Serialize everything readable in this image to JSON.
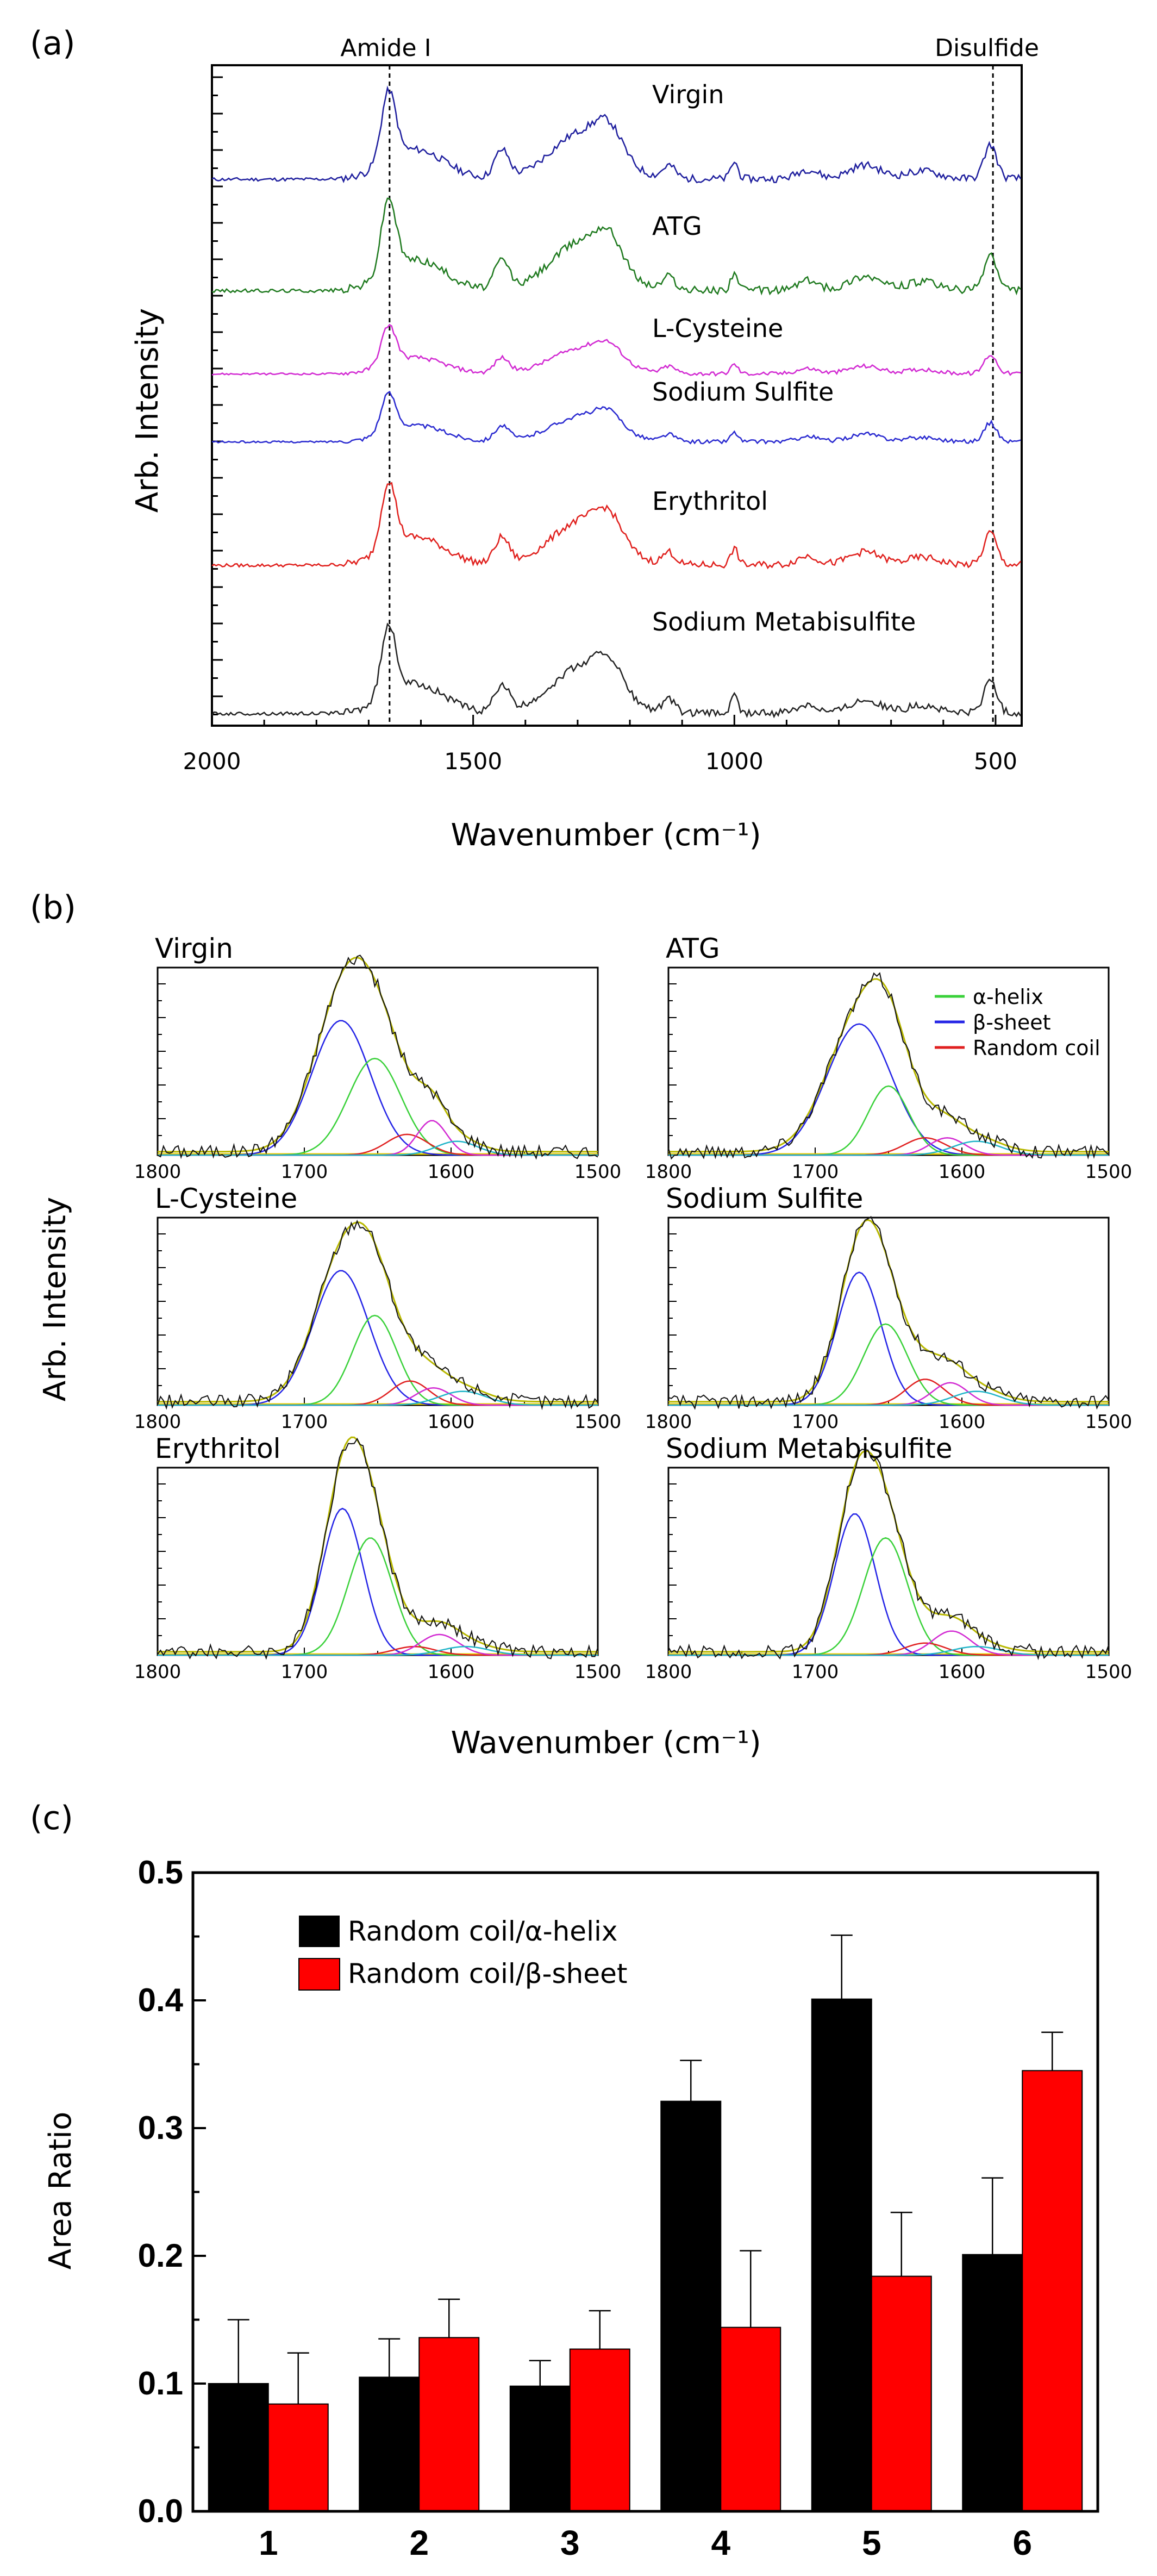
{
  "chart_data": [
    {
      "panel": "(a)",
      "type": "line",
      "subtype": "stacked-spectra",
      "xlabel": "Wavenumber (cm⁻¹)",
      "ylabel": "Arb. Intensity",
      "xlim": [
        2000,
        450
      ],
      "xticks": [
        2000,
        1500,
        1000,
        500
      ],
      "markers": [
        {
          "label": "Amide I",
          "x": 1660
        },
        {
          "label": "Disulfide",
          "x": 505
        }
      ],
      "series": [
        {
          "name": "Virgin",
          "color": "#1f1f9e"
        },
        {
          "name": "ATG",
          "color": "#1f7a1f"
        },
        {
          "name": "L-Cysteine",
          "color": "#d22ad2"
        },
        {
          "name": "Sodium Sulfite",
          "color": "#2a2ad0"
        },
        {
          "name": "Erythritol",
          "color": "#e0201d"
        },
        {
          "name": "Sodium Metabisulfite",
          "color": "#222222"
        }
      ]
    },
    {
      "panel": "(b)",
      "type": "line",
      "subtype": "peak-deconvolution",
      "xlabel": "Wavenumber (cm⁻¹)",
      "ylabel": "Arb. Intensity",
      "xlim": [
        1800,
        1500
      ],
      "xticks": [
        1800,
        1700,
        1600,
        1500
      ],
      "legend": [
        {
          "label": "α-helix",
          "color": "#3ad13a"
        },
        {
          "label": "β-sheet",
          "color": "#2424e6"
        },
        {
          "label": "Random coil",
          "color": "#e02020"
        }
      ],
      "panels": [
        {
          "title": "Virgin",
          "peaks": [
            {
              "c": 1675,
              "a": 0.78,
              "w": 20,
              "color": "#2424e6"
            },
            {
              "c": 1652,
              "a": 0.56,
              "w": 18,
              "color": "#3ad13a"
            },
            {
              "c": 1630,
              "a": 0.12,
              "w": 14,
              "color": "#e02020"
            },
            {
              "c": 1613,
              "a": 0.2,
              "w": 10,
              "color": "#d22ad2"
            },
            {
              "c": 1596,
              "a": 0.08,
              "w": 14,
              "color": "#22b5c9"
            }
          ]
        },
        {
          "title": "ATG",
          "peaks": [
            {
              "c": 1670,
              "a": 0.76,
              "w": 22,
              "color": "#2424e6"
            },
            {
              "c": 1650,
              "a": 0.4,
              "w": 14,
              "color": "#3ad13a"
            },
            {
              "c": 1625,
              "a": 0.1,
              "w": 14,
              "color": "#e02020"
            },
            {
              "c": 1610,
              "a": 0.1,
              "w": 12,
              "color": "#d22ad2"
            },
            {
              "c": 1590,
              "a": 0.08,
              "w": 16,
              "color": "#22b5c9"
            }
          ]
        },
        {
          "title": "L-Cysteine",
          "peaks": [
            {
              "c": 1675,
              "a": 0.78,
              "w": 19,
              "color": "#2424e6"
            },
            {
              "c": 1652,
              "a": 0.52,
              "w": 15,
              "color": "#3ad13a"
            },
            {
              "c": 1628,
              "a": 0.14,
              "w": 13,
              "color": "#e02020"
            },
            {
              "c": 1612,
              "a": 0.1,
              "w": 12,
              "color": "#d22ad2"
            },
            {
              "c": 1592,
              "a": 0.08,
              "w": 16,
              "color": "#22b5c9"
            }
          ]
        },
        {
          "title": "Sodium Sulfite",
          "peaks": [
            {
              "c": 1670,
              "a": 0.77,
              "w": 15,
              "color": "#2424e6"
            },
            {
              "c": 1652,
              "a": 0.47,
              "w": 15,
              "color": "#3ad13a"
            },
            {
              "c": 1625,
              "a": 0.15,
              "w": 13,
              "color": "#e02020"
            },
            {
              "c": 1608,
              "a": 0.13,
              "w": 12,
              "color": "#d22ad2"
            },
            {
              "c": 1590,
              "a": 0.08,
              "w": 16,
              "color": "#22b5c9"
            }
          ]
        },
        {
          "title": "Erythritol",
          "peaks": [
            {
              "c": 1674,
              "a": 0.85,
              "w": 14,
              "color": "#2424e6"
            },
            {
              "c": 1655,
              "a": 0.68,
              "w": 15,
              "color": "#3ad13a"
            },
            {
              "c": 1625,
              "a": 0.05,
              "w": 14,
              "color": "#e02020"
            },
            {
              "c": 1608,
              "a": 0.12,
              "w": 13,
              "color": "#d22ad2"
            },
            {
              "c": 1590,
              "a": 0.05,
              "w": 16,
              "color": "#22b5c9"
            }
          ]
        },
        {
          "title": "Sodium Metabisulfite",
          "peaks": [
            {
              "c": 1673,
              "a": 0.82,
              "w": 14,
              "color": "#2424e6"
            },
            {
              "c": 1652,
              "a": 0.68,
              "w": 15,
              "color": "#3ad13a"
            },
            {
              "c": 1625,
              "a": 0.07,
              "w": 14,
              "color": "#e02020"
            },
            {
              "c": 1607,
              "a": 0.14,
              "w": 13,
              "color": "#d22ad2"
            },
            {
              "c": 1590,
              "a": 0.05,
              "w": 16,
              "color": "#22b5c9"
            }
          ]
        }
      ]
    },
    {
      "panel": "(c)",
      "type": "bar",
      "xlabel": "",
      "ylabel": "Area Ratio",
      "ylim": [
        0.0,
        0.5
      ],
      "yticks": [
        "0.0",
        "0.1",
        "0.2",
        "0.3",
        "0.4",
        "0.5"
      ],
      "categories": [
        "1",
        "2",
        "3",
        "4",
        "5",
        "6"
      ],
      "series": [
        {
          "name": "Random coil/α-helix",
          "color": "#000000",
          "values": [
            0.1,
            0.105,
            0.098,
            0.321,
            0.401,
            0.201
          ],
          "errors": [
            0.05,
            0.03,
            0.02,
            0.032,
            0.05,
            0.06
          ]
        },
        {
          "name": "Random coil/β-sheet",
          "color": "#ff0000",
          "values": [
            0.084,
            0.136,
            0.127,
            0.144,
            0.184,
            0.345
          ],
          "errors": [
            0.04,
            0.03,
            0.03,
            0.06,
            0.05,
            0.03
          ]
        }
      ]
    }
  ]
}
